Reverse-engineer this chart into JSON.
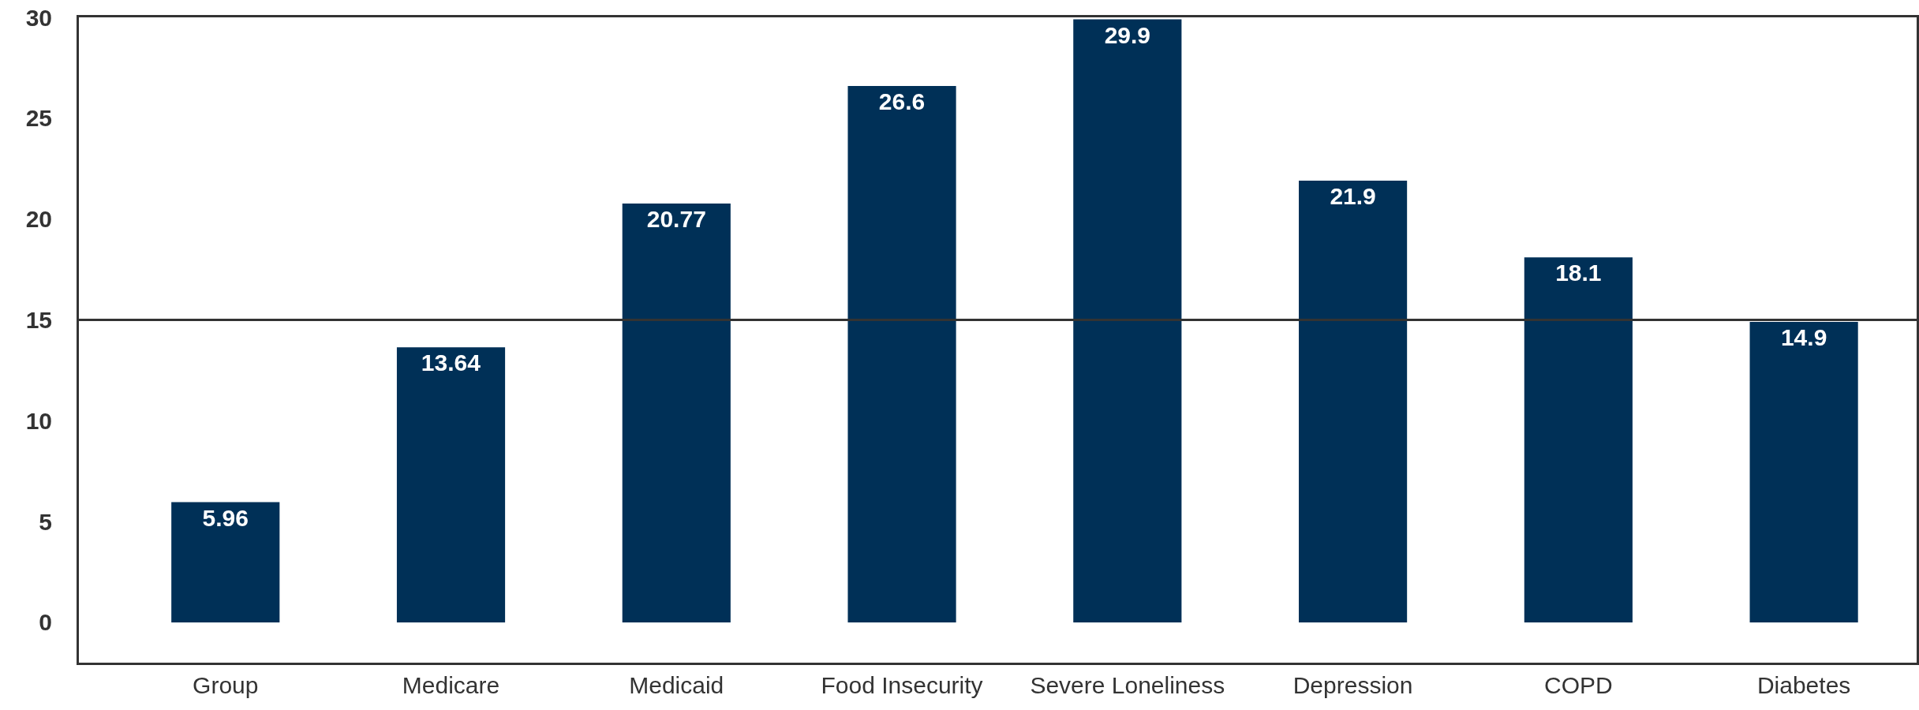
{
  "chart_data": {
    "type": "bar",
    "categories": [
      "Group",
      "Medicare",
      "Medicaid",
      "Food Insecurity",
      "Severe Loneliness",
      "Depression",
      "COPD",
      "Diabetes"
    ],
    "values": [
      5.96,
      13.64,
      20.77,
      26.6,
      29.9,
      21.9,
      18.1,
      14.9
    ],
    "color": "#003057",
    "data_labels": true,
    "ylim": [
      -2,
      30
    ],
    "yticks": [
      0,
      5,
      10,
      15,
      20,
      25,
      30
    ],
    "ref_lines": [
      {
        "axis": "y",
        "value": 15,
        "color": "#333333"
      }
    ],
    "legend": false
  }
}
